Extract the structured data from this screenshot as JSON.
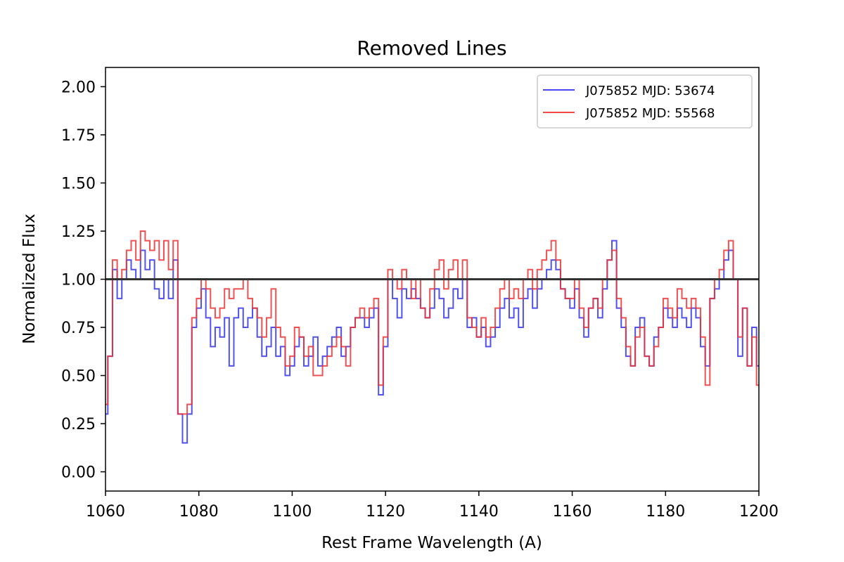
{
  "chart_data": {
    "type": "line",
    "title": "Removed Lines",
    "xlabel": "Rest Frame Wavelength (A)",
    "ylabel": "Normalized Flux",
    "xlim": [
      1060,
      1200
    ],
    "ylim": [
      -0.1,
      2.1
    ],
    "xticks": [
      "1060",
      "1080",
      "1100",
      "1120",
      "1140",
      "1160",
      "1180",
      "1200"
    ],
    "xtick_values": [
      1060,
      1080,
      1100,
      1120,
      1140,
      1160,
      1180,
      1200
    ],
    "yticks": [
      "0.00",
      "0.25",
      "0.50",
      "0.75",
      "1.00",
      "1.25",
      "1.50",
      "1.75",
      "2.00"
    ],
    "ytick_values": [
      0.0,
      0.25,
      0.5,
      0.75,
      1.0,
      1.25,
      1.5,
      1.75,
      2.0
    ],
    "grid": false,
    "legend_position": "top-right",
    "reference_line": {
      "y": 1.0,
      "color": "#333333"
    },
    "series": [
      {
        "name": "J075852 MJD: 53674",
        "color": "#3333ee",
        "x": [
          1060,
          1061,
          1062,
          1063,
          1064,
          1065,
          1066,
          1067,
          1068,
          1069,
          1070,
          1071,
          1072,
          1073,
          1074,
          1075,
          1076,
          1077,
          1078,
          1079,
          1080,
          1081,
          1082,
          1083,
          1084,
          1085,
          1086,
          1087,
          1088,
          1089,
          1090,
          1091,
          1092,
          1093,
          1094,
          1095,
          1096,
          1097,
          1098,
          1099,
          1100,
          1101,
          1102,
          1103,
          1104,
          1105,
          1106,
          1107,
          1108,
          1109,
          1110,
          1111,
          1112,
          1113,
          1114,
          1115,
          1116,
          1117,
          1118,
          1119,
          1120,
          1121,
          1122,
          1123,
          1124,
          1125,
          1126,
          1127,
          1128,
          1129,
          1130,
          1131,
          1132,
          1133,
          1134,
          1135,
          1136,
          1137,
          1138,
          1139,
          1140,
          1141,
          1142,
          1143,
          1144,
          1145,
          1146,
          1147,
          1148,
          1149,
          1150,
          1151,
          1152,
          1153,
          1154,
          1155,
          1156,
          1157,
          1158,
          1159,
          1160,
          1161,
          1162,
          1163,
          1164,
          1165,
          1166,
          1167,
          1168,
          1169,
          1170,
          1171,
          1172,
          1173,
          1174,
          1175,
          1176,
          1177,
          1178,
          1179,
          1180,
          1181,
          1182,
          1183,
          1184,
          1185,
          1186,
          1187,
          1188,
          1189,
          1190,
          1191,
          1192,
          1193,
          1194,
          1195,
          1196,
          1197,
          1198,
          1199,
          1200
        ],
        "y": [
          0.3,
          0.6,
          1.05,
          0.9,
          1.0,
          1.1,
          1.05,
          1.0,
          1.15,
          1.05,
          1.1,
          0.95,
          0.9,
          1.0,
          0.9,
          1.1,
          0.3,
          0.15,
          0.3,
          0.75,
          0.85,
          0.95,
          0.8,
          0.65,
          0.75,
          0.7,
          0.8,
          0.55,
          0.8,
          0.85,
          0.75,
          0.8,
          0.85,
          0.7,
          0.6,
          0.65,
          0.75,
          0.6,
          0.65,
          0.5,
          0.55,
          0.65,
          0.7,
          0.55,
          0.6,
          0.7,
          0.55,
          0.6,
          0.65,
          0.7,
          0.75,
          0.6,
          0.65,
          0.75,
          0.8,
          0.8,
          0.75,
          0.8,
          0.85,
          0.4,
          0.65,
          1.0,
          0.9,
          0.8,
          0.95,
          0.9,
          0.95,
          0.9,
          0.85,
          0.8,
          0.85,
          0.95,
          0.9,
          0.8,
          0.85,
          0.95,
          0.9,
          1.0,
          0.75,
          0.8,
          0.7,
          0.75,
          0.65,
          0.7,
          0.75,
          0.85,
          0.9,
          0.8,
          0.85,
          0.75,
          0.9,
          0.95,
          0.85,
          0.95,
          1.0,
          1.05,
          1.1,
          1.05,
          0.95,
          0.9,
          0.85,
          0.95,
          0.8,
          0.7,
          0.85,
          0.9,
          0.8,
          0.95,
          1.1,
          1.2,
          0.85,
          0.75,
          0.6,
          0.55,
          0.75,
          0.8,
          0.6,
          0.55,
          0.7,
          0.75,
          0.85,
          0.8,
          0.75,
          0.85,
          0.8,
          0.75,
          0.85,
          0.8,
          0.65,
          0.55,
          0.9,
          0.95,
          1.0,
          1.1,
          1.15,
          1.0,
          0.6,
          0.85,
          0.55,
          0.75,
          0.55
        ]
      },
      {
        "name": "J075852 MJD: 55568",
        "color": "#ee3333",
        "x": [
          1060,
          1061,
          1062,
          1063,
          1064,
          1065,
          1066,
          1067,
          1068,
          1069,
          1070,
          1071,
          1072,
          1073,
          1074,
          1075,
          1076,
          1077,
          1078,
          1079,
          1080,
          1081,
          1082,
          1083,
          1084,
          1085,
          1086,
          1087,
          1088,
          1089,
          1090,
          1091,
          1092,
          1093,
          1094,
          1095,
          1096,
          1097,
          1098,
          1099,
          1100,
          1101,
          1102,
          1103,
          1104,
          1105,
          1106,
          1107,
          1108,
          1109,
          1110,
          1111,
          1112,
          1113,
          1114,
          1115,
          1116,
          1117,
          1118,
          1119,
          1120,
          1121,
          1122,
          1123,
          1124,
          1125,
          1126,
          1127,
          1128,
          1129,
          1130,
          1131,
          1132,
          1133,
          1134,
          1135,
          1136,
          1137,
          1138,
          1139,
          1140,
          1141,
          1142,
          1143,
          1144,
          1145,
          1146,
          1147,
          1148,
          1149,
          1150,
          1151,
          1152,
          1153,
          1154,
          1155,
          1156,
          1157,
          1158,
          1159,
          1160,
          1161,
          1162,
          1163,
          1164,
          1165,
          1166,
          1167,
          1168,
          1169,
          1170,
          1171,
          1172,
          1173,
          1174,
          1175,
          1176,
          1177,
          1178,
          1179,
          1180,
          1181,
          1182,
          1183,
          1184,
          1185,
          1186,
          1187,
          1188,
          1189,
          1190,
          1191,
          1192,
          1193,
          1194,
          1195,
          1196,
          1197,
          1198,
          1199,
          1200
        ],
        "y": [
          0.35,
          0.6,
          1.1,
          1.0,
          1.05,
          1.15,
          1.2,
          1.1,
          1.25,
          1.2,
          1.15,
          1.2,
          1.1,
          1.2,
          1.05,
          1.2,
          0.3,
          0.3,
          0.35,
          0.8,
          0.9,
          1.0,
          0.95,
          0.85,
          0.8,
          0.85,
          0.95,
          0.9,
          0.95,
          0.95,
          1.0,
          0.9,
          0.85,
          0.8,
          0.7,
          0.8,
          0.95,
          0.75,
          0.7,
          0.55,
          0.6,
          0.75,
          0.7,
          0.6,
          0.65,
          0.5,
          0.5,
          0.55,
          0.6,
          0.65,
          0.7,
          0.65,
          0.55,
          0.75,
          0.8,
          0.85,
          0.8,
          0.85,
          0.9,
          0.45,
          0.7,
          1.05,
          1.0,
          0.95,
          1.05,
          1.0,
          0.9,
          1.0,
          0.85,
          0.8,
          0.95,
          1.05,
          1.1,
          0.95,
          1.05,
          1.1,
          1.0,
          1.1,
          0.8,
          0.75,
          0.7,
          0.8,
          0.7,
          0.75,
          0.85,
          0.95,
          1.0,
          0.9,
          0.95,
          0.9,
          1.0,
          1.05,
          0.95,
          1.05,
          1.1,
          1.15,
          1.2,
          1.1,
          0.95,
          0.9,
          0.9,
          1.0,
          0.85,
          0.75,
          0.85,
          0.9,
          0.85,
          1.0,
          1.1,
          1.15,
          0.9,
          0.8,
          0.65,
          0.55,
          0.7,
          0.75,
          0.6,
          0.55,
          0.65,
          0.75,
          0.9,
          0.85,
          0.8,
          0.95,
          0.9,
          0.85,
          0.9,
          0.85,
          0.7,
          0.45,
          0.9,
          1.0,
          1.05,
          1.15,
          1.2,
          1.0,
          0.7,
          0.85,
          0.55,
          0.7,
          0.45
        ]
      }
    ]
  }
}
